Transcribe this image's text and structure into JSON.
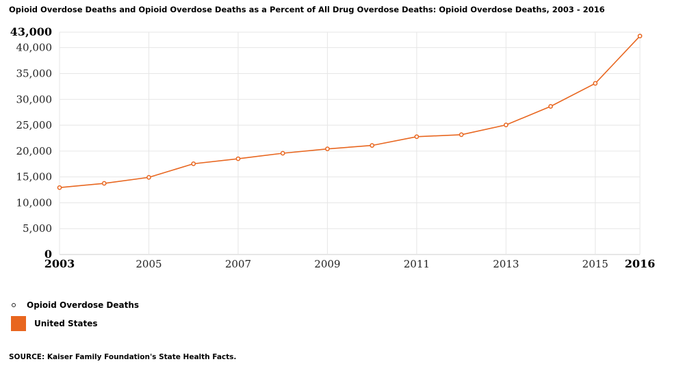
{
  "title": "Opioid Overdose Deaths and Opioid Overdose Deaths as a Percent of All Drug Overdose Deaths: Opioid Overdose Deaths, 2003 - 2016",
  "legend": {
    "series_label": "Opioid Overdose Deaths",
    "region_label": "United States",
    "region_color": "#e8661f"
  },
  "source": "SOURCE: Kaiser Family Foundation's State Health Facts.",
  "chart_data": {
    "type": "line",
    "title": "Opioid Overdose Deaths and Opioid Overdose Deaths as a Percent of All Drug Overdose Deaths: Opioid Overdose Deaths, 2003 - 2016",
    "xlabel": "",
    "ylabel": "",
    "x": [
      2003,
      2004,
      2005,
      2006,
      2007,
      2008,
      2009,
      2010,
      2011,
      2012,
      2013,
      2014,
      2015,
      2016
    ],
    "series": [
      {
        "name": "Opioid Overdose Deaths",
        "color": "#e8661f",
        "values": [
          12940,
          13756,
          14918,
          17545,
          18516,
          19582,
          20422,
          21089,
          22784,
          23166,
          25052,
          28647,
          33091,
          42249
        ]
      }
    ],
    "xlim": [
      2003,
      2016
    ],
    "ylim": [
      0,
      43000
    ],
    "x_ticks": [
      {
        "label": "2003",
        "value": 2003,
        "bold": true
      },
      {
        "label": "2005",
        "value": 2005,
        "bold": false
      },
      {
        "label": "2007",
        "value": 2007,
        "bold": false
      },
      {
        "label": "2009",
        "value": 2009,
        "bold": false
      },
      {
        "label": "2011",
        "value": 2011,
        "bold": false
      },
      {
        "label": "2013",
        "value": 2013,
        "bold": false
      },
      {
        "label": "2015",
        "value": 2015,
        "bold": false
      },
      {
        "label": "2016",
        "value": 2016,
        "bold": true
      }
    ],
    "y_ticks": [
      {
        "label": "0",
        "value": 0,
        "bold": true
      },
      {
        "label": "5,000",
        "value": 5000,
        "bold": false
      },
      {
        "label": "10,000",
        "value": 10000,
        "bold": false
      },
      {
        "label": "15,000",
        "value": 15000,
        "bold": false
      },
      {
        "label": "20,000",
        "value": 20000,
        "bold": false
      },
      {
        "label": "25,000",
        "value": 25000,
        "bold": false
      },
      {
        "label": "30,000",
        "value": 30000,
        "bold": false
      },
      {
        "label": "35,000",
        "value": 35000,
        "bold": false
      },
      {
        "label": "40,000",
        "value": 40000,
        "bold": false
      },
      {
        "label": "43,000",
        "value": 43000,
        "bold": true
      }
    ],
    "grid": true,
    "legend_position": "bottom-left"
  }
}
